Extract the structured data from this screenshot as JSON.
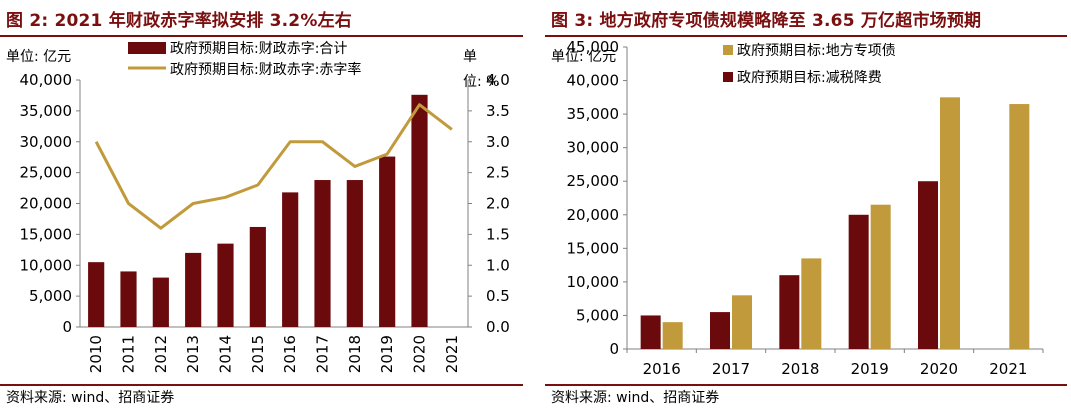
{
  "left": {
    "title": "图 2:  2021 年财政赤字率拟安排 3.2%左右",
    "unit_left": "单位: 亿元",
    "unit_right_1": "单",
    "unit_right_2": "位: %",
    "source": "资料来源: wind、招商证券"
  },
  "right": {
    "title": "图 3:  地方政府专项债规模略降至 3.65 万亿超市场预期",
    "unit_left": "单位: 亿元",
    "source": "资料来源: wind、招商证券"
  },
  "colors": {
    "dark_red": "#6b0a0c",
    "gold": "#c19a3b",
    "title_red": "#7a0f10",
    "axis": "#808080"
  },
  "chart_data": [
    {
      "type": "bar+line",
      "categories": [
        "2010",
        "2011",
        "2012",
        "2013",
        "2014",
        "2015",
        "2016",
        "2017",
        "2018",
        "2019",
        "2020",
        "2021"
      ],
      "series": [
        {
          "name": "政府预期目标:财政赤字:合计",
          "type": "bar",
          "axis": "left",
          "values": [
            10500,
            9000,
            8000,
            12000,
            13500,
            16200,
            21800,
            23800,
            23800,
            27600,
            37600,
            null
          ]
        },
        {
          "name": "政府预期目标:财政赤字:赤字率",
          "type": "line",
          "axis": "right",
          "values": [
            3.0,
            2.0,
            1.6,
            2.0,
            2.1,
            2.3,
            3.0,
            3.0,
            2.6,
            2.8,
            3.6,
            3.2
          ]
        }
      ],
      "y_left_ticks": [
        "0",
        "5,000",
        "10,000",
        "15,000",
        "20,000",
        "25,000",
        "30,000",
        "35,000",
        "40,000"
      ],
      "y_right_ticks": [
        "0.0",
        "0.5",
        "1.0",
        "1.5",
        "2.0",
        "2.5",
        "3.0",
        "3.5",
        "4.0"
      ],
      "ylim_left": [
        0,
        40000
      ],
      "ylim_right": [
        0,
        4.0
      ],
      "legend_position": "top"
    },
    {
      "type": "bar",
      "categories": [
        "2016",
        "2017",
        "2018",
        "2019",
        "2020",
        "2021"
      ],
      "series": [
        {
          "name": "政府预期目标:减税降费",
          "values": [
            5000,
            5500,
            11000,
            20000,
            25000,
            null
          ]
        },
        {
          "name": "政府预期目标:地方专项债",
          "values": [
            4000,
            8000,
            13500,
            21500,
            37500,
            36500
          ]
        }
      ],
      "y_ticks": [
        "0",
        "5,000",
        "10,000",
        "15,000",
        "20,000",
        "25,000",
        "30,000",
        "35,000",
        "40,000",
        "45,000"
      ],
      "ylim": [
        0,
        45000
      ],
      "legend_position": "top-left"
    }
  ]
}
